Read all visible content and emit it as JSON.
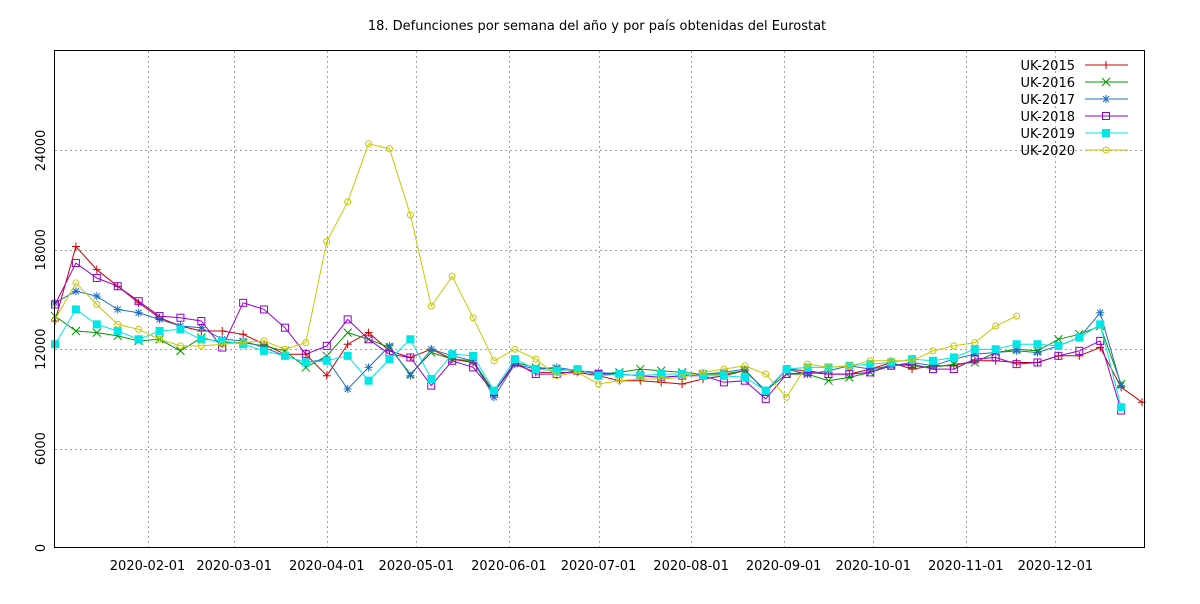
{
  "chart_data": {
    "type": "line",
    "title": "18. Defunciones por semana del año y por país obtenidas del Eurostat",
    "xlabel": "",
    "ylabel": "",
    "xlim": [
      "2020-01-01",
      "2020-12-31"
    ],
    "ylim": [
      0,
      30000
    ],
    "yticks": [
      0,
      6000,
      12000,
      18000,
      24000
    ],
    "xticks": [
      "2020-02-01",
      "2020-03-01",
      "2020-04-01",
      "2020-05-01",
      "2020-06-01",
      "2020-07-01",
      "2020-08-01",
      "2020-09-01",
      "2020-10-01",
      "2020-11-01",
      "2020-12-01"
    ],
    "grid": true,
    "legend": "top-right",
    "x": [
      "2020-01-01",
      "2020-01-08",
      "2020-01-15",
      "2020-01-22",
      "2020-01-29",
      "2020-02-05",
      "2020-02-12",
      "2020-02-19",
      "2020-02-26",
      "2020-03-04",
      "2020-03-11",
      "2020-03-18",
      "2020-03-25",
      "2020-04-01",
      "2020-04-08",
      "2020-04-15",
      "2020-04-22",
      "2020-04-29",
      "2020-05-06",
      "2020-05-13",
      "2020-05-20",
      "2020-05-27",
      "2020-06-03",
      "2020-06-10",
      "2020-06-17",
      "2020-06-24",
      "2020-07-01",
      "2020-07-08",
      "2020-07-15",
      "2020-07-22",
      "2020-07-29",
      "2020-08-05",
      "2020-08-12",
      "2020-08-19",
      "2020-08-26",
      "2020-09-02",
      "2020-09-09",
      "2020-09-16",
      "2020-09-23",
      "2020-09-30",
      "2020-10-07",
      "2020-10-14",
      "2020-10-21",
      "2020-10-28",
      "2020-11-04",
      "2020-11-11",
      "2020-11-18",
      "2020-11-25",
      "2020-12-02",
      "2020-12-09",
      "2020-12-16",
      "2020-12-23",
      "2020-12-30"
    ],
    "series": [
      {
        "name": "UK-2015",
        "color": "#cc0000",
        "marker": "plus",
        "values": [
          13700,
          18200,
          16800,
          15800,
          14800,
          13900,
          13400,
          13100,
          13100,
          12900,
          12300,
          11700,
          11700,
          10400,
          12300,
          13000,
          11900,
          11500,
          12000,
          11400,
          11200,
          9400,
          11100,
          10600,
          10600,
          10600,
          10400,
          10100,
          10100,
          10000,
          9900,
          10200,
          10400,
          10700,
          9500,
          10800,
          10700,
          10500,
          10500,
          10800,
          11200,
          10800,
          11000,
          11000,
          11300,
          11300,
          11200,
          11200,
          11600,
          11600,
          12100,
          9700,
          8800
        ]
      },
      {
        "name": "UK-2016",
        "color": "#009900",
        "marker": "x",
        "values": [
          14000,
          13100,
          13000,
          12800,
          12500,
          12600,
          11900,
          12700,
          12400,
          12400,
          12200,
          11900,
          10900,
          11600,
          13000,
          12600,
          12100,
          10500,
          11800,
          11400,
          11300,
          9400,
          11200,
          10900,
          10800,
          10700,
          10500,
          10600,
          10800,
          10700,
          10600,
          10500,
          10500,
          10700,
          9500,
          10500,
          10500,
          10100,
          10300,
          10600,
          11100,
          11000,
          10900,
          11100,
          11200,
          11800,
          12000,
          11900,
          12600,
          12900,
          13400,
          9900,
          null
        ]
      },
      {
        "name": "UK-2017",
        "color": "#1e6fc4",
        "marker": "star",
        "values": [
          14800,
          15500,
          15200,
          14400,
          14200,
          13800,
          13400,
          13300,
          12600,
          12500,
          12100,
          11600,
          11200,
          11400,
          9600,
          10900,
          12200,
          10400,
          12000,
          11600,
          11300,
          9100,
          11100,
          10800,
          10900,
          10700,
          10600,
          10500,
          10400,
          10300,
          10400,
          10500,
          10600,
          10800,
          9400,
          10800,
          10500,
          10700,
          11000,
          10800,
          11000,
          11200,
          11000,
          11400,
          11700,
          11800,
          11900,
          11800,
          12200,
          12700,
          14200,
          9800,
          null
        ]
      },
      {
        "name": "UK-2018",
        "color": "#9400d3",
        "marker": "box",
        "values": [
          14700,
          17200,
          16300,
          15800,
          14900,
          14000,
          13900,
          13700,
          12100,
          14800,
          14400,
          13300,
          11700,
          12200,
          13800,
          12600,
          11700,
          11500,
          9800,
          11300,
          10900,
          9400,
          11200,
          10500,
          10500,
          10700,
          10500,
          10500,
          10400,
          10300,
          10400,
          10400,
          10000,
          10100,
          9000,
          10500,
          10600,
          10500,
          10500,
          10600,
          11000,
          11100,
          10800,
          10800,
          11400,
          11500,
          11100,
          11200,
          11600,
          11900,
          12500,
          8300,
          null
        ]
      },
      {
        "name": "UK-2019",
        "color": "#00e5e5",
        "marker": "fbox",
        "values": [
          12300,
          14400,
          13500,
          13100,
          12600,
          13100,
          13200,
          12600,
          12500,
          12300,
          11900,
          11600,
          11200,
          11300,
          11600,
          10100,
          11400,
          12600,
          10200,
          11700,
          11600,
          9500,
          11400,
          10800,
          10700,
          10800,
          10400,
          10500,
          10400,
          10500,
          10500,
          10400,
          10400,
          10300,
          9500,
          10800,
          10900,
          10900,
          11000,
          11100,
          11200,
          11400,
          11300,
          11500,
          12000,
          12000,
          12300,
          12300,
          12200,
          12700,
          13500,
          8500,
          null
        ]
      },
      {
        "name": "UK-2020",
        "color": "#c8c800",
        "marker": "circle",
        "values": [
          13800,
          16000,
          14700,
          13500,
          13200,
          12600,
          12200,
          12200,
          12300,
          12400,
          12500,
          12000,
          12400,
          18500,
          20900,
          24400,
          24100,
          20100,
          14600,
          16400,
          13900,
          11300,
          12000,
          11400,
          10400,
          10600,
          9900,
          10100,
          10200,
          10200,
          10300,
          10600,
          10800,
          11000,
          10500,
          9100,
          11100,
          10900,
          11000,
          11300,
          11300,
          11300,
          11900,
          12200,
          12400,
          13400,
          14000,
          null,
          null,
          null,
          null,
          null,
          null
        ]
      }
    ]
  }
}
